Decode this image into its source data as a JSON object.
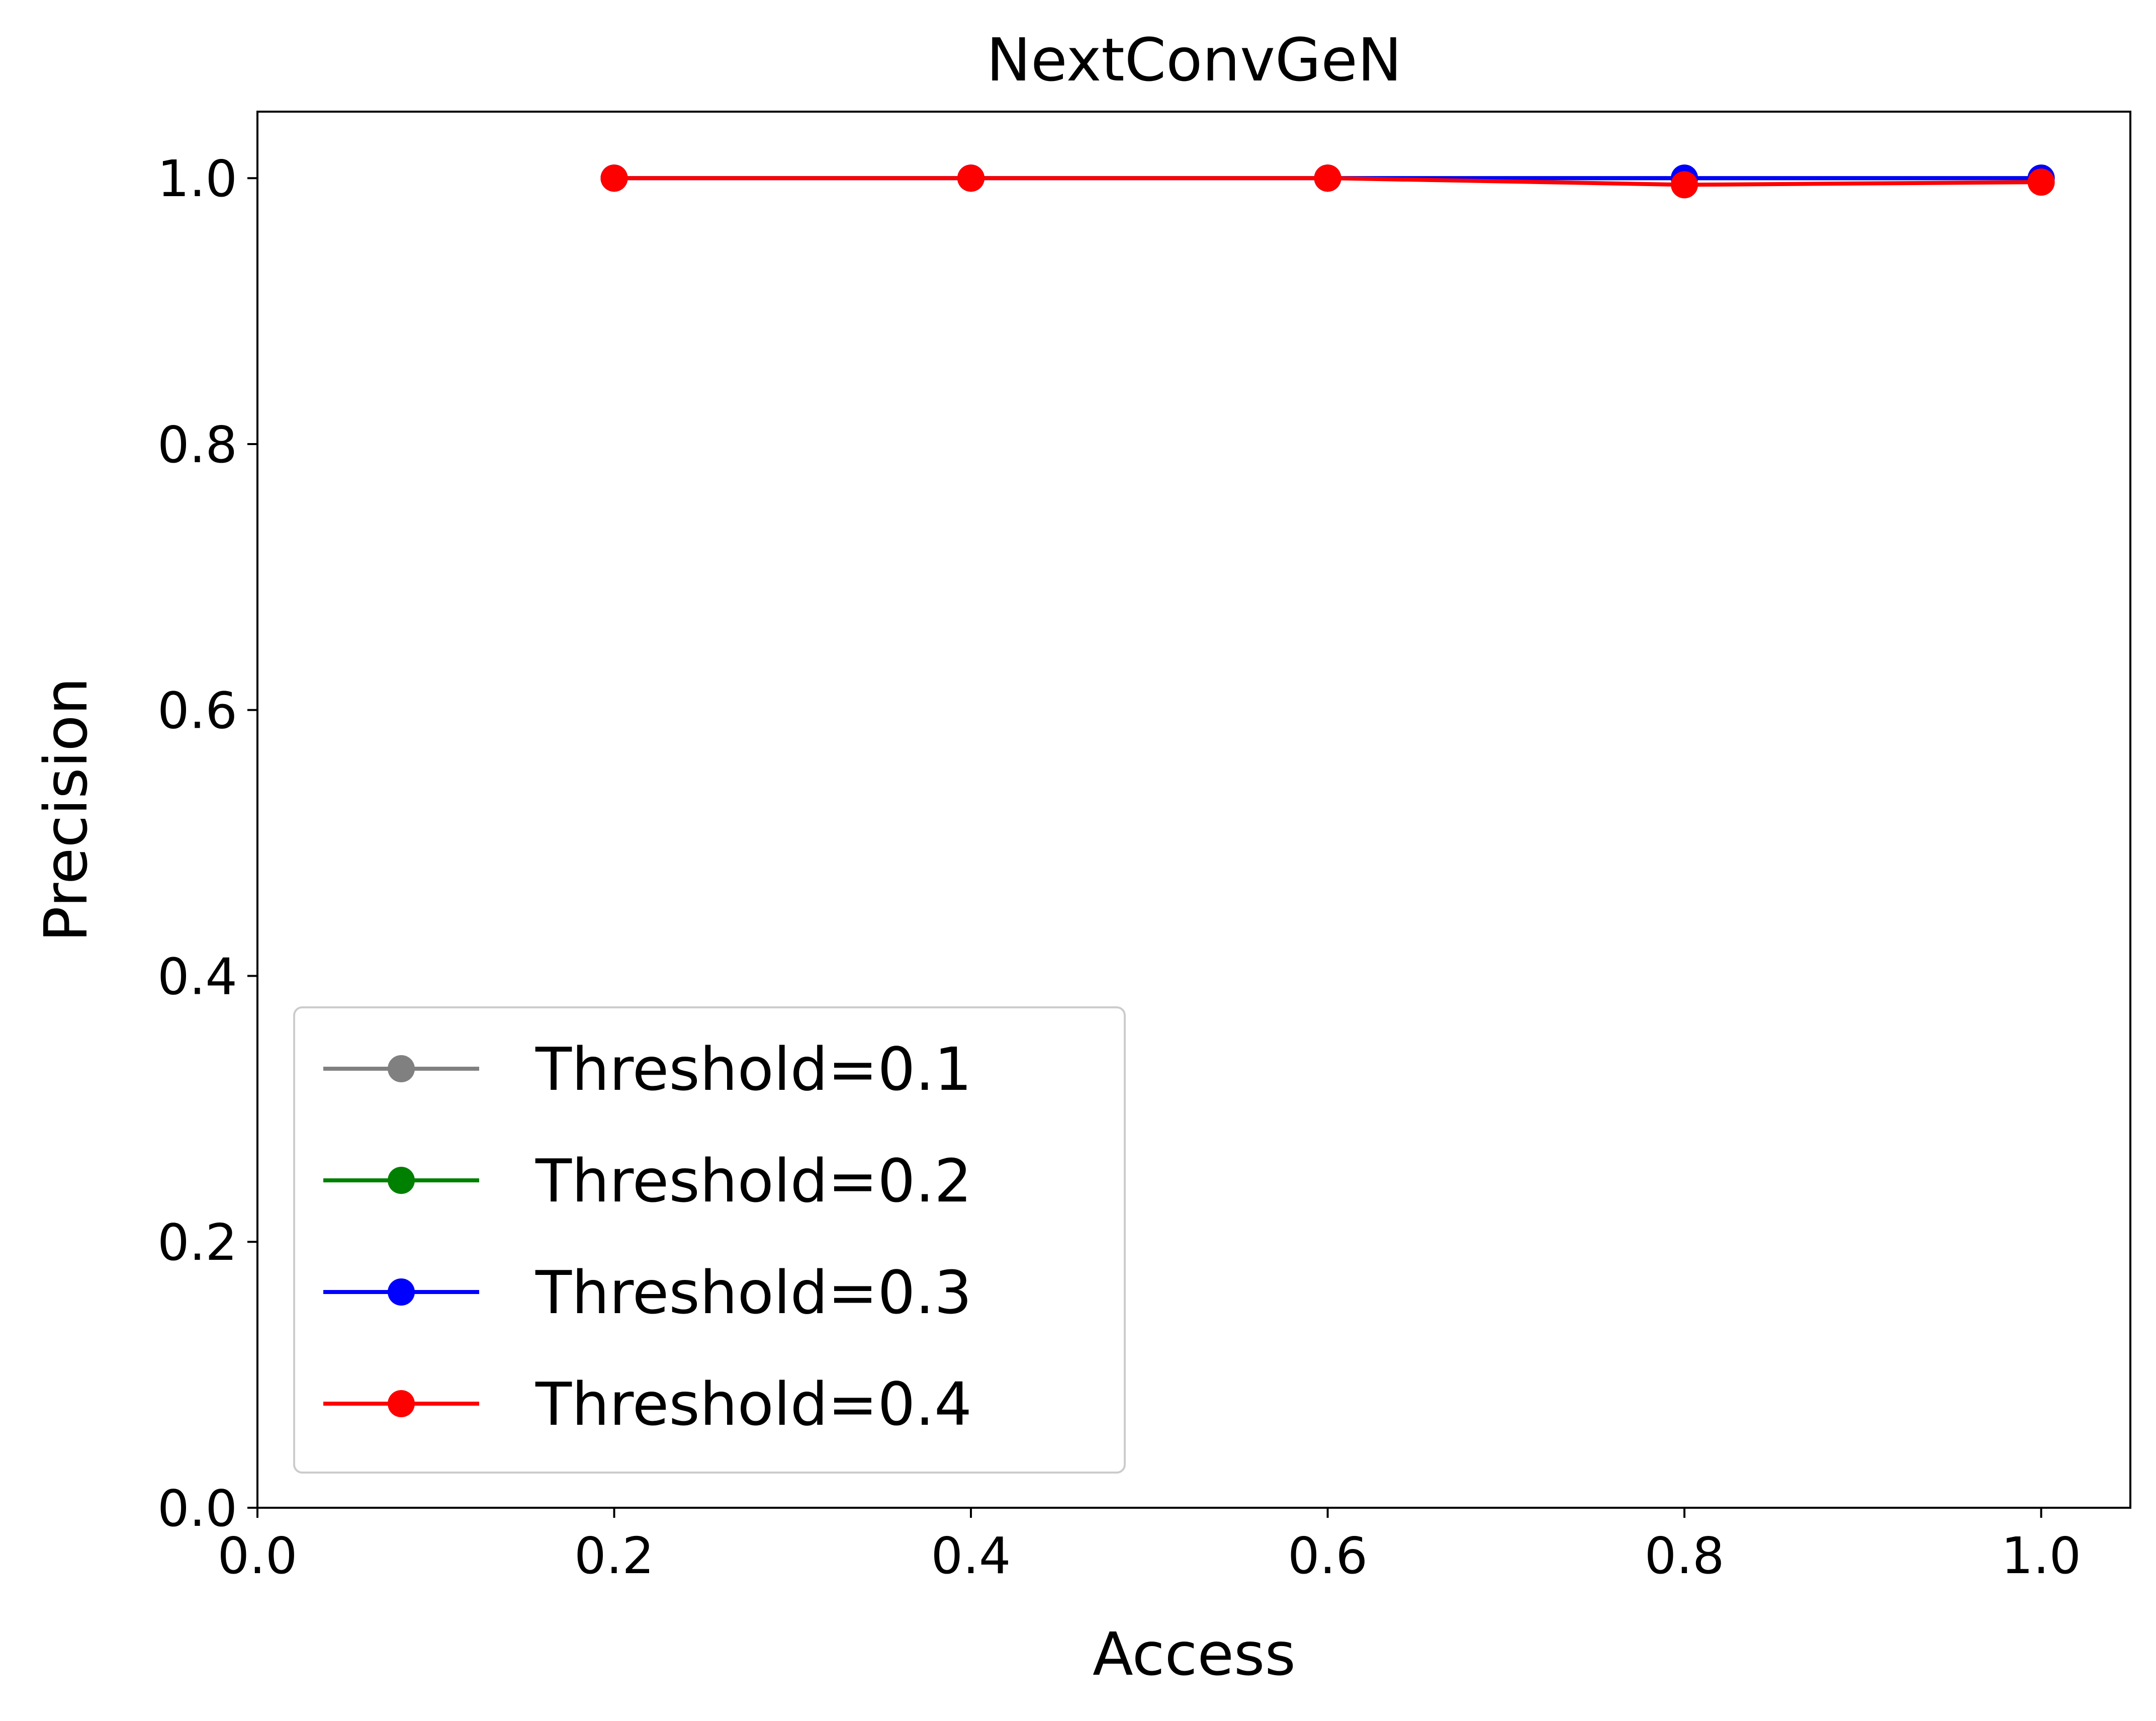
{
  "chart_data": {
    "type": "line",
    "title": "NextConvGeN",
    "xlabel": "Access",
    "ylabel": "Precision",
    "xlim": [
      0.0,
      1.05
    ],
    "ylim": [
      0.0,
      1.05
    ],
    "xticks": [
      "0.0",
      "0.2",
      "0.4",
      "0.6",
      "0.8",
      "1.0"
    ],
    "yticks": [
      "0.0",
      "0.2",
      "0.4",
      "0.6",
      "0.8",
      "1.0"
    ],
    "grid": false,
    "legend_position": "lower-left",
    "x": [
      0.2,
      0.4,
      0.6,
      0.8,
      1.0
    ],
    "series": [
      {
        "name": "Threshold=0.1",
        "color": "#808080",
        "values": [
          1.0,
          1.0,
          1.0,
          1.0,
          1.0
        ]
      },
      {
        "name": "Threshold=0.2",
        "color": "#008000",
        "values": [
          1.0,
          1.0,
          1.0,
          1.0,
          1.0
        ]
      },
      {
        "name": "Threshold=0.3",
        "color": "#0000ff",
        "values": [
          1.0,
          1.0,
          1.0,
          1.0,
          1.0
        ]
      },
      {
        "name": "Threshold=0.4",
        "color": "#ff0000",
        "values": [
          1.0,
          1.0,
          1.0,
          0.995,
          0.997
        ]
      }
    ]
  }
}
